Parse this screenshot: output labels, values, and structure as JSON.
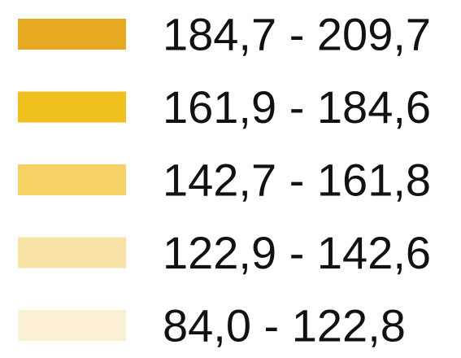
{
  "legend": {
    "items": [
      {
        "label": "184,7 - 209,7",
        "color": "#e8a922"
      },
      {
        "label": "161,9 - 184,6",
        "color": "#f0c11e"
      },
      {
        "label": "142,7 - 161,8",
        "color": "#f5d166"
      },
      {
        "label": "122,9 - 142,6",
        "color": "#f8e3a6"
      },
      {
        "label": "84,0 - 122,8",
        "color": "#fcf0d4"
      }
    ]
  }
}
